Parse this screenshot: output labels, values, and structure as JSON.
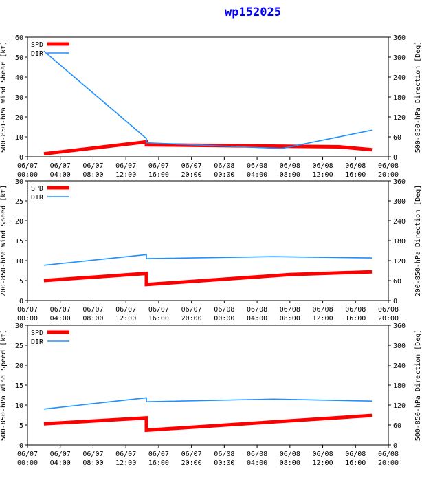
{
  "title": "wp152025",
  "colors": {
    "spd": "#ff0000",
    "dir": "#1e90ff",
    "axis": "#000000"
  },
  "x_ticks": [
    "06/07\n00:00",
    "06/07\n04:00",
    "06/07\n08:00",
    "06/07\n12:00",
    "06/07\n16:00",
    "06/07\n20:00",
    "06/08\n00:00",
    "06/08\n04:00",
    "06/08\n08:00",
    "06/08\n12:00",
    "06/08\n16:00",
    "06/08\n20:00"
  ],
  "chart_data": [
    {
      "type": "line",
      "ylabel_left": "500-850-hPa Wind Shear [kt]",
      "ylabel_right": "500-850-hPa Direction [Deg]",
      "xlim_hours": [
        0,
        44
      ],
      "ylim_left": [
        0,
        60
      ],
      "yticks_left": [
        0,
        10,
        20,
        30,
        40,
        50,
        60
      ],
      "ylim_right": [
        0,
        360
      ],
      "yticks_right": [
        0,
        60,
        120,
        180,
        240,
        300,
        360
      ],
      "legend": [
        "SPD",
        "DIR"
      ],
      "series": [
        {
          "name": "SPD",
          "axis": "left",
          "x": [
            2,
            14.5,
            14.5,
            26,
            38,
            42
          ],
          "y": [
            1.5,
            7.5,
            6,
            5.5,
            5,
            3.5
          ]
        },
        {
          "name": "DIR",
          "axis": "right",
          "x": [
            2,
            14.5,
            14.5,
            26,
            31,
            42
          ],
          "y": [
            318,
            55,
            42,
            30,
            25,
            80
          ]
        }
      ]
    },
    {
      "type": "line",
      "ylabel_left": "200-850-hPa Wind Speed [kt]",
      "ylabel_right": "200-850-hPa Direction [Deg]",
      "xlim_hours": [
        0,
        44
      ],
      "ylim_left": [
        0,
        30
      ],
      "yticks_left": [
        0,
        5,
        10,
        15,
        20,
        25,
        30
      ],
      "ylim_right": [
        0,
        360
      ],
      "yticks_right": [
        0,
        60,
        120,
        180,
        240,
        300,
        360
      ],
      "legend": [
        "SPD",
        "DIR"
      ],
      "series": [
        {
          "name": "SPD",
          "axis": "left",
          "x": [
            2,
            14.5,
            14.5,
            32,
            42
          ],
          "y": [
            5,
            6.8,
            4,
            6.5,
            7.2
          ]
        },
        {
          "name": "DIR",
          "axis": "right",
          "x": [
            2,
            14.5,
            14.5,
            30,
            42
          ],
          "y": [
            106,
            138,
            126,
            132,
            128
          ]
        }
      ]
    },
    {
      "type": "line",
      "ylabel_left": "500-850-hPa Wind Speed [kt]",
      "ylabel_right": "500-850-hPa Direction [Deg]",
      "xlim_hours": [
        0,
        44
      ],
      "ylim_left": [
        0,
        30
      ],
      "yticks_left": [
        0,
        5,
        10,
        15,
        20,
        25,
        30
      ],
      "ylim_right": [
        0,
        360
      ],
      "yticks_right": [
        0,
        60,
        120,
        180,
        240,
        300,
        360
      ],
      "legend": [
        "SPD",
        "DIR"
      ],
      "series": [
        {
          "name": "SPD",
          "axis": "left",
          "x": [
            2,
            14.5,
            14.5,
            42
          ],
          "y": [
            5.3,
            6.8,
            3.7,
            7.4
          ]
        },
        {
          "name": "DIR",
          "axis": "right",
          "x": [
            2,
            14.5,
            14.5,
            30,
            42
          ],
          "y": [
            108,
            142,
            130,
            138,
            132
          ]
        }
      ]
    }
  ]
}
